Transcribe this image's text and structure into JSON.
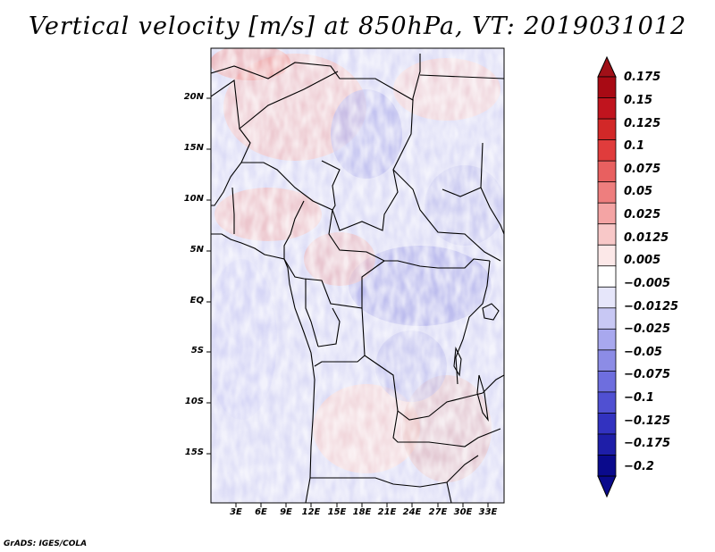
{
  "title": "Vertical velocity [m/s] at 850hPa, VT: 2019031012",
  "footer": "GrADS: IGES/COLA",
  "map": {
    "variable": "Vertical velocity",
    "units": "m/s",
    "level": "850hPa",
    "valid_time": "2019031012",
    "lat_labels": [
      "20N",
      "15N",
      "10N",
      "5N",
      "EQ",
      "5S",
      "10S",
      "15S"
    ],
    "lon_labels": [
      "3E",
      "6E",
      "9E",
      "12E",
      "15E",
      "18E",
      "21E",
      "24E",
      "27E",
      "30E",
      "33E"
    ]
  },
  "colorbar": {
    "labels": [
      "0.175",
      "0.15",
      "0.125",
      "0.1",
      "0.075",
      "0.05",
      "0.025",
      "0.0125",
      "0.005",
      "−0.005",
      "−0.0125",
      "−0.025",
      "−0.05",
      "−0.075",
      "−0.1",
      "−0.125",
      "−0.175",
      "−0.2"
    ],
    "colors": [
      "#a80a14",
      "#c0141e",
      "#d22828",
      "#e03c3c",
      "#e86060",
      "#ee7e7e",
      "#f4a4a4",
      "#f8c8c8",
      "#fce8e8",
      "#ffffff",
      "#e6e6fa",
      "#c8c8f4",
      "#a8a8ee",
      "#8c8ce6",
      "#6e6ede",
      "#5050d2",
      "#3232c0",
      "#1e1ea8",
      "#0a0a8c"
    ]
  }
}
